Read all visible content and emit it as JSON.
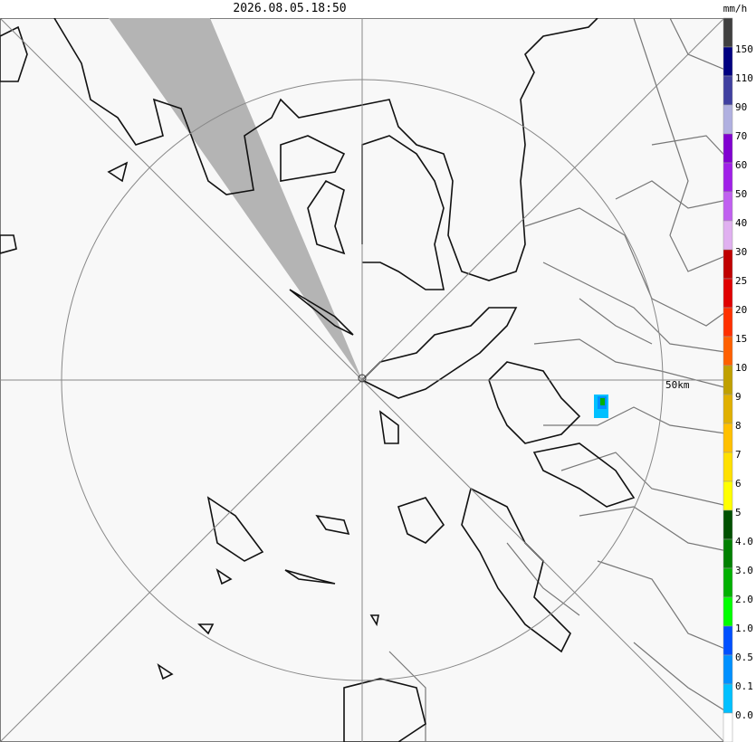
{
  "header": {
    "timestamp": "2026.08.05.18:50",
    "unit": "mm/h"
  },
  "map": {
    "range_label": "50km"
  },
  "legend": {
    "colors": [
      "#404040",
      "#000080",
      "#4040a0",
      "#b0b0e0",
      "#8000d0",
      "#a020e8",
      "#c060f0",
      "#e0b0f0",
      "#c00000",
      "#e00000",
      "#ff3000",
      "#ff6000",
      "#c0a000",
      "#e0b000",
      "#ffc000",
      "#ffe000",
      "#ffff00",
      "#005000",
      "#008000",
      "#00b000",
      "#00ff00",
      "#0050ff",
      "#0090ff",
      "#00c0ff",
      "#ffffff"
    ],
    "labels": [
      "150",
      "110",
      "90",
      "70",
      "60",
      "50",
      "40",
      "30",
      "25",
      "20",
      "15",
      "10",
      "9",
      "8",
      "7",
      "6",
      "5",
      "4.0",
      "3.0",
      "2.0",
      "1.0",
      "0.5",
      "0.1",
      "0.0"
    ]
  }
}
